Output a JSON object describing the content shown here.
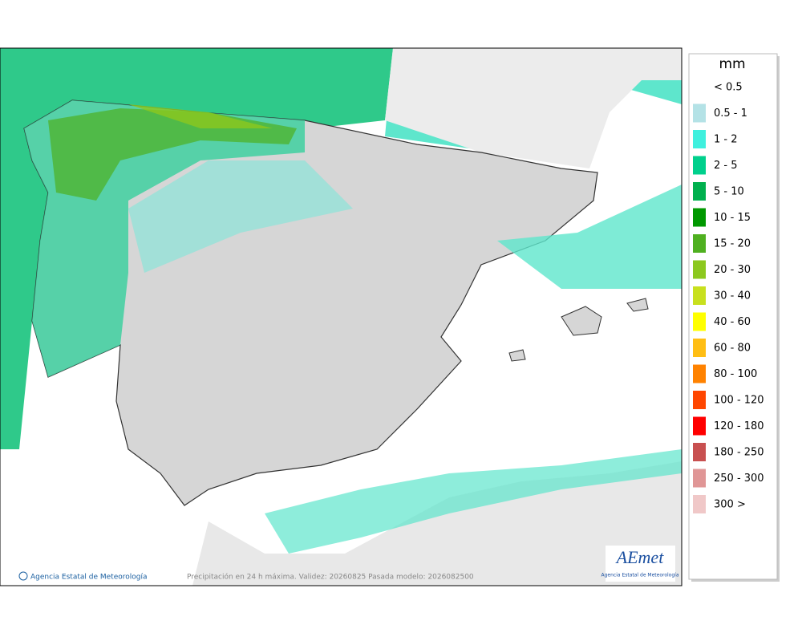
{
  "legend": {
    "title": "mm",
    "items": [
      {
        "label": "< 0.5",
        "color": "#ffffff"
      },
      {
        "label": "0.5 - 1",
        "color": "#b4e2e6"
      },
      {
        "label": "1 - 2",
        "color": "#3ff0de"
      },
      {
        "label": "2 - 5",
        "color": "#00d08c"
      },
      {
        "label": "5 - 10",
        "color": "#00b04e"
      },
      {
        "label": "10 - 15",
        "color": "#009800"
      },
      {
        "label": "15 - 20",
        "color": "#4fb020"
      },
      {
        "label": "20 - 30",
        "color": "#8cc81e"
      },
      {
        "label": "30 - 40",
        "color": "#c8e01e"
      },
      {
        "label": "40 - 60",
        "color": "#ffff00"
      },
      {
        "label": "60 - 80",
        "color": "#ffbe14"
      },
      {
        "label": "80 - 100",
        "color": "#ff8200"
      },
      {
        "label": "100 - 120",
        "color": "#ff4600"
      },
      {
        "label": "120 - 180",
        "color": "#ff0000"
      },
      {
        "label": "180 - 250",
        "color": "#c85050"
      },
      {
        "label": "250 - 300",
        "color": "#e09696"
      },
      {
        "label": "300 >",
        "color": "#f0c8c8"
      }
    ]
  },
  "footer": {
    "copyright": "Agencia Estatal de Meteorología",
    "caption": "Precipitación en 24 h máxima. Validez: 20260825 Pasada modelo: 2026082500"
  },
  "logo": {
    "name": "AEmet",
    "subtitle": "Agencia Estatal de Meteorología"
  }
}
